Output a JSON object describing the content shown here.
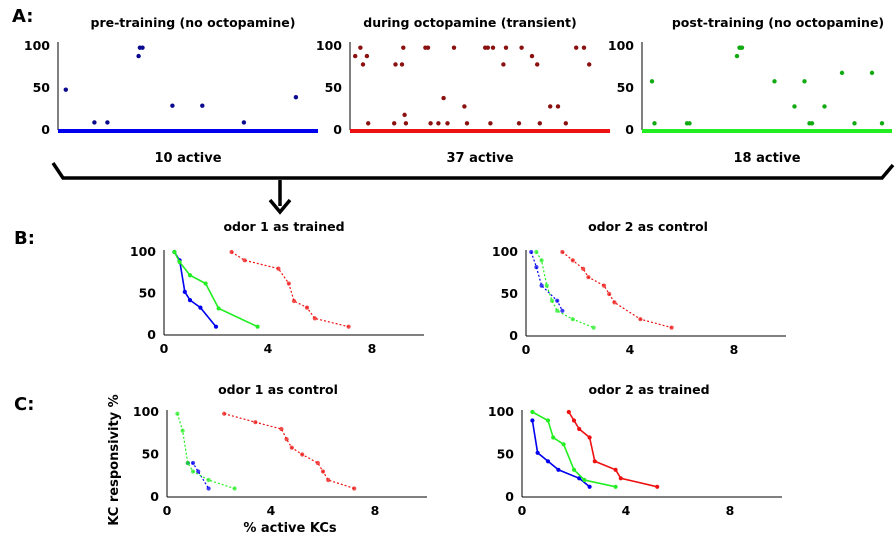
{
  "panel_labels": {
    "A": "A:",
    "B": "B:",
    "C": "C:"
  },
  "axis_labels": {
    "y": "KC responsivity %",
    "x": "% active KCs"
  },
  "chart_data": [
    {
      "id": "A1",
      "type": "scatter",
      "title": "pre-training (no octopamine)",
      "annotation": "10 active",
      "color": "#0a0a90",
      "baseline_color": "#0000ee",
      "ylim": [
        0,
        100
      ],
      "yticks": [
        "100",
        "50",
        "0"
      ],
      "x": [
        0.03,
        0.14,
        0.19,
        0.31,
        0.315,
        0.325,
        0.44,
        0.555,
        0.715,
        0.915
      ],
      "y": [
        48,
        9,
        9,
        88,
        98,
        98,
        29,
        29,
        9,
        39
      ]
    },
    {
      "id": "A2",
      "type": "scatter",
      "title": "during octopamine (transient)",
      "annotation": "37 active",
      "color": "#8b1010",
      "baseline_color": "#ee1111",
      "ylim": [
        0,
        100
      ],
      "yticks": [
        "100",
        "50",
        "0"
      ],
      "x": [
        0.02,
        0.04,
        0.05,
        0.065,
        0.07,
        0.17,
        0.175,
        0.2,
        0.205,
        0.21,
        0.215,
        0.29,
        0.3,
        0.31,
        0.34,
        0.36,
        0.375,
        0.4,
        0.44,
        0.45,
        0.52,
        0.53,
        0.54,
        0.55,
        0.59,
        0.6,
        0.65,
        0.66,
        0.7,
        0.72,
        0.73,
        0.77,
        0.8,
        0.83,
        0.87,
        0.9,
        0.92
      ],
      "y": [
        88,
        98,
        78,
        88,
        8,
        8,
        78,
        78,
        98,
        18,
        8,
        98,
        98,
        8,
        8,
        38,
        8,
        98,
        28,
        8,
        98,
        98,
        8,
        98,
        78,
        98,
        8,
        98,
        88,
        78,
        8,
        28,
        28,
        8,
        98,
        98,
        78
      ],
      "note": "positions approximated from the figure"
    },
    {
      "id": "A3",
      "type": "scatter",
      "title": "post-training (no octopamine)",
      "annotation": "18 active",
      "color": "#11aa11",
      "baseline_color": "#22ee22",
      "ylim": [
        0,
        100
      ],
      "yticks": [
        "100",
        "50",
        "0"
      ],
      "x": [
        0.04,
        0.05,
        0.18,
        0.19,
        0.38,
        0.39,
        0.395,
        0.4,
        0.53,
        0.61,
        0.65,
        0.67,
        0.68,
        0.73,
        0.8,
        0.85,
        0.92,
        0.96
      ],
      "y": [
        58,
        8,
        8,
        8,
        88,
        98,
        98,
        98,
        58,
        28,
        58,
        8,
        8,
        28,
        68,
        8,
        68,
        8
      ]
    },
    {
      "id": "B1",
      "type": "line",
      "title": "odor 1 as trained",
      "xlim": [
        0,
        10
      ],
      "ylim": [
        0,
        100
      ],
      "xticks": [
        "0",
        "4",
        "8"
      ],
      "yticks": [
        "100",
        "50",
        "0"
      ],
      "series": [
        {
          "color": "#0000ee",
          "dashed": false,
          "points": [
            [
              0.4,
              100
            ],
            [
              0.6,
              90
            ],
            [
              0.8,
              52
            ],
            [
              1.0,
              42
            ],
            [
              1.4,
              33
            ],
            [
              2.0,
              10
            ]
          ]
        },
        {
          "color": "#22ee22",
          "dashed": false,
          "points": [
            [
              0.4,
              100
            ],
            [
              0.6,
              88
            ],
            [
              1.0,
              72
            ],
            [
              1.6,
              62
            ],
            [
              2.1,
              32
            ],
            [
              3.6,
              10
            ]
          ]
        },
        {
          "color": "#ee1111",
          "dashed": true,
          "points": [
            [
              2.6,
              100
            ],
            [
              3.1,
              90
            ],
            [
              4.4,
              80
            ],
            [
              4.8,
              62
            ],
            [
              5.0,
              41
            ],
            [
              5.5,
              33
            ],
            [
              5.8,
              20
            ],
            [
              7.1,
              10
            ]
          ]
        }
      ]
    },
    {
      "id": "B2",
      "type": "line",
      "title": "odor 2 as control",
      "xlim": [
        0,
        10
      ],
      "ylim": [
        0,
        100
      ],
      "xticks": [
        "0",
        "4",
        "8"
      ],
      "yticks": [
        "100",
        "50",
        "0"
      ],
      "series": [
        {
          "color": "#0000ee",
          "dashed": true,
          "points": [
            [
              0.2,
              100
            ],
            [
              0.4,
              82
            ],
            [
              0.6,
              60
            ],
            [
              1.2,
              42
            ],
            [
              1.4,
              30
            ]
          ]
        },
        {
          "color": "#22ee22",
          "dashed": true,
          "points": [
            [
              0.4,
              100
            ],
            [
              0.6,
              90
            ],
            [
              0.8,
              60
            ],
            [
              1.0,
              42
            ],
            [
              1.2,
              30
            ],
            [
              1.8,
              20
            ],
            [
              2.6,
              10
            ]
          ]
        },
        {
          "color": "#ee1111",
          "dashed": true,
          "points": [
            [
              1.4,
              100
            ],
            [
              1.8,
              90
            ],
            [
              2.2,
              80
            ],
            [
              2.4,
              70
            ],
            [
              3.0,
              60
            ],
            [
              3.2,
              50
            ],
            [
              3.4,
              40
            ],
            [
              4.4,
              20
            ],
            [
              5.6,
              10
            ]
          ]
        }
      ]
    },
    {
      "id": "C1",
      "type": "line",
      "title": "odor 1 as control",
      "xlim": [
        0,
        10
      ],
      "ylim": [
        0,
        100
      ],
      "xticks": [
        "0",
        "4",
        "8"
      ],
      "yticks": [
        "100",
        "50",
        "0"
      ],
      "series": [
        {
          "color": "#0000ee",
          "dashed": true,
          "points": [
            [
              0.8,
              40
            ],
            [
              1.0,
              40
            ],
            [
              1.2,
              30
            ],
            [
              1.6,
              10
            ]
          ]
        },
        {
          "color": "#22ee22",
          "dashed": true,
          "points": [
            [
              0.4,
              98
            ],
            [
              0.6,
              78
            ],
            [
              0.8,
              40
            ],
            [
              1.0,
              30
            ],
            [
              1.6,
              20
            ],
            [
              2.6,
              10
            ]
          ]
        },
        {
          "color": "#ee1111",
          "dashed": true,
          "points": [
            [
              2.2,
              98
            ],
            [
              3.4,
              88
            ],
            [
              4.4,
              80
            ],
            [
              4.6,
              68
            ],
            [
              4.8,
              58
            ],
            [
              5.2,
              50
            ],
            [
              5.8,
              40
            ],
            [
              6.0,
              30
            ],
            [
              6.2,
              20
            ],
            [
              7.2,
              10
            ]
          ]
        }
      ]
    },
    {
      "id": "C2",
      "type": "line",
      "title": "odor 2 as trained",
      "xlim": [
        0,
        10
      ],
      "ylim": [
        0,
        100
      ],
      "xticks": [
        "0",
        "4",
        "8"
      ],
      "yticks": [
        "100",
        "50",
        "0"
      ],
      "series": [
        {
          "color": "#0000ee",
          "dashed": false,
          "points": [
            [
              0.4,
              90
            ],
            [
              0.6,
              52
            ],
            [
              1.0,
              42
            ],
            [
              1.4,
              32
            ],
            [
              2.2,
              22
            ],
            [
              2.6,
              12
            ]
          ]
        },
        {
          "color": "#22ee22",
          "dashed": false,
          "points": [
            [
              0.4,
              100
            ],
            [
              1.0,
              90
            ],
            [
              1.2,
              70
            ],
            [
              1.6,
              62
            ],
            [
              2.0,
              32
            ],
            [
              2.4,
              20
            ],
            [
              3.6,
              12
            ]
          ]
        },
        {
          "color": "#ee1111",
          "dashed": false,
          "points": [
            [
              1.8,
              100
            ],
            [
              2.0,
              90
            ],
            [
              2.2,
              80
            ],
            [
              2.6,
              70
            ],
            [
              2.8,
              42
            ],
            [
              3.6,
              32
            ],
            [
              3.8,
              22
            ],
            [
              5.2,
              12
            ]
          ]
        }
      ]
    }
  ]
}
